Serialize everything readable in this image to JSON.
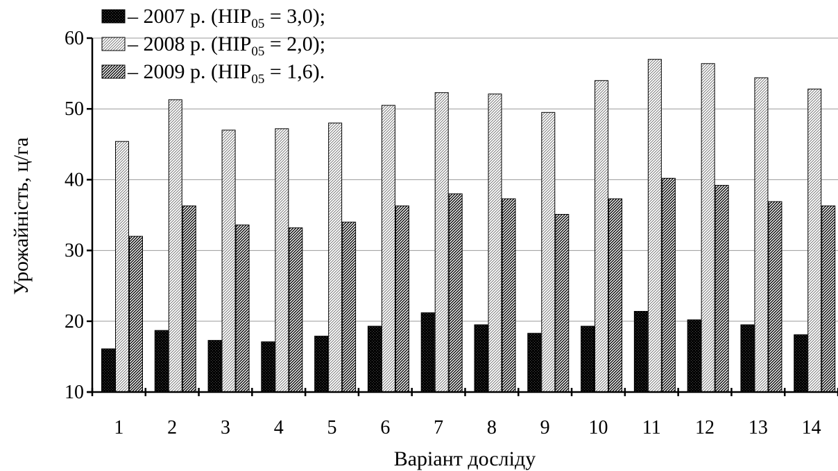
{
  "chart_data": {
    "type": "bar",
    "xlabel": "Варіант досліду",
    "ylabel": "Урожайність, ц/га",
    "ylim": [
      10,
      60
    ],
    "yticks": [
      10,
      20,
      30,
      40,
      50,
      60
    ],
    "grid": "horizontal",
    "legend_position": "top-left",
    "categories": [
      "1",
      "2",
      "3",
      "4",
      "5",
      "6",
      "7",
      "8",
      "9",
      "10",
      "11",
      "12",
      "13",
      "14"
    ],
    "series": [
      {
        "name": "2007 р.",
        "hip_sub": "05",
        "hip_value": "3,0",
        "hip_end": ");",
        "values": [
          16.1,
          18.7,
          17.3,
          17.1,
          17.9,
          19.3,
          21.2,
          19.5,
          18.3,
          19.3,
          21.4,
          20.2,
          19.5,
          18.1
        ]
      },
      {
        "name": "2008 р.",
        "hip_sub": "05",
        "hip_value": "2,0",
        "hip_end": ");",
        "values": [
          45.4,
          51.3,
          47.0,
          47.2,
          48.0,
          50.5,
          52.3,
          52.1,
          49.5,
          54.0,
          57.0,
          56.4,
          54.4,
          52.8
        ]
      },
      {
        "name": "2009 р.",
        "hip_sub": "05",
        "hip_value": "1,6",
        "hip_end": ").",
        "values": [
          32.0,
          36.3,
          33.6,
          33.2,
          34.0,
          36.3,
          38.0,
          37.3,
          35.1,
          37.3,
          40.2,
          39.2,
          36.9,
          36.3
        ]
      }
    ]
  }
}
